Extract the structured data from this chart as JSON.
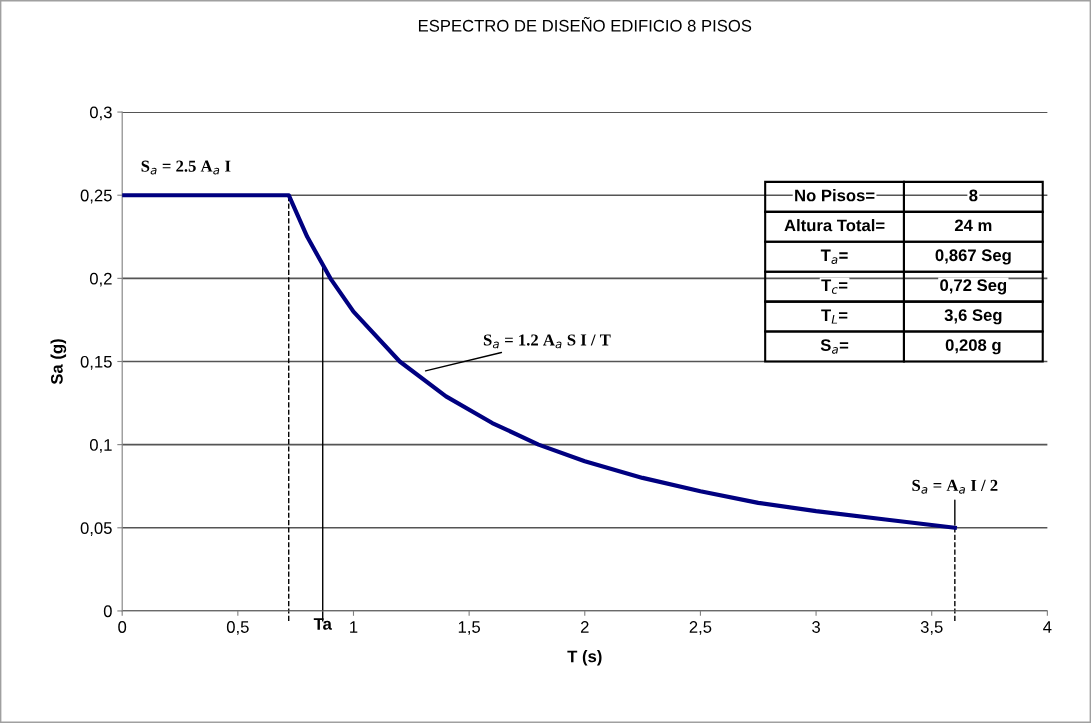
{
  "chart_data": {
    "type": "line",
    "title": "ESPECTRO DE DISEÑO EDIFICIO 8 PISOS",
    "xlabel": "T (s)",
    "ylabel": "Sa (g)",
    "x": [
      0,
      0.72,
      0.8,
      0.9,
      1.0,
      1.2,
      1.4,
      1.6,
      1.8,
      2.0,
      2.25,
      2.5,
      2.75,
      3.0,
      3.3,
      3.6
    ],
    "series": [
      {
        "color": "#000080",
        "values": [
          0.25,
          0.25,
          0.225,
          0.2,
          0.18,
          0.15,
          0.129,
          0.113,
          0.1,
          0.09,
          0.08,
          0.072,
          0.065,
          0.06,
          0.055,
          0.05
        ]
      }
    ],
    "xlim": [
      0,
      4
    ],
    "ylim": [
      0,
      0.3
    ],
    "xticks": [
      0,
      {
        "value": 0.5,
        "label": "0,5"
      },
      1,
      {
        "value": 1.5,
        "label": "1,5"
      },
      2,
      {
        "value": 2.5,
        "label": "2,5"
      },
      3,
      {
        "value": 3.5,
        "label": "3,5"
      },
      4
    ],
    "yticks": [
      0,
      {
        "value": 0.05,
        "label": "0,05"
      },
      {
        "value": 0.1,
        "label": "0,1"
      },
      {
        "value": 0.15,
        "label": "0,15"
      },
      {
        "value": 0.2,
        "label": "0,2"
      },
      {
        "value": 0.25,
        "label": "0,25"
      },
      {
        "value": 0.3,
        "label": "0,3"
      }
    ],
    "grid": "y",
    "legend": false,
    "marker": "none",
    "line_style": "solid",
    "ref_lines": [
      {
        "axis": "x",
        "value": 0.72,
        "line_style": "dashed",
        "color": "#000000"
      },
      {
        "axis": "x",
        "value": 0.867,
        "label": "Ta",
        "line_style": "solid",
        "color": "#000000"
      },
      {
        "axis": "x",
        "value": 3.6,
        "line_style": "dashed",
        "color": "#000000"
      }
    ],
    "annotations": [
      "S$_{a}$ = 2.5 A$_{a}$ I",
      "S$_{a}$ = 1.2 A$_{a}$ S I / T",
      {
        "text": "S$_{a}$ = A$_{a}$ I / 2",
        "x": 3.6,
        "y": 0.05
      },
      "No Pisos=",
      "8",
      "Altura Total=",
      "24 m",
      "T$_{a}$=",
      "0,867 Seg",
      "T$_{c}$=",
      "0,72 Seg",
      "T$_{L}$=",
      "3,6 Seg",
      "S$_{a}$=",
      "0,208 g"
    ]
  }
}
